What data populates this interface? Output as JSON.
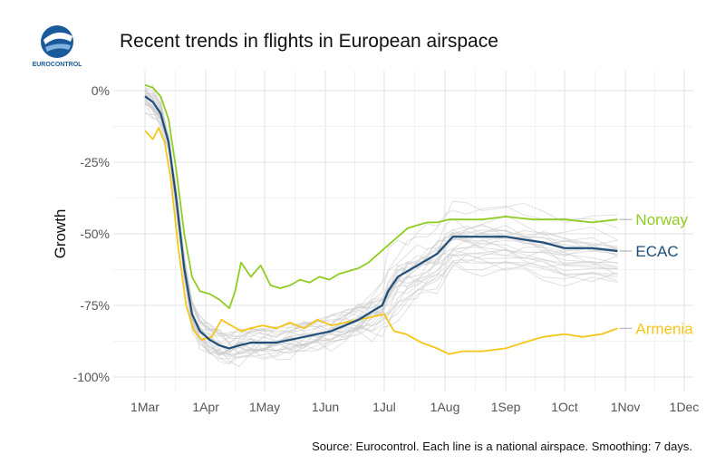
{
  "brand": {
    "logo_text": "EUROCONTROL"
  },
  "title": "Recent trends in flights in European airspace",
  "source": "Source: Eurocontrol. Each line is a national airspace. Smoothing: 7 days.",
  "colors": {
    "norway": "#8fcc21",
    "ecac": "#1f4e79",
    "armenia": "#f5c518",
    "background_lines": "#c8c8c8",
    "grid": "#e6e6e6"
  },
  "chart_data": {
    "type": "line",
    "title": "Recent trends in flights in European airspace",
    "ylabel": "Growth",
    "xlabel": "",
    "x_ticks": [
      "1Mar",
      "1Apr",
      "1May",
      "1Jun",
      "1Jul",
      "1Aug",
      "1Sep",
      "1Oct",
      "1Nov",
      "1Dec"
    ],
    "y_ticks": [
      "0%",
      "-25%",
      "-50%",
      "-75%",
      "-100%"
    ],
    "y_tick_values": [
      0,
      -25,
      -50,
      -75,
      -100
    ],
    "xlim": [
      "2020-03-01",
      "2020-12-01"
    ],
    "ylim": [
      -100,
      5
    ],
    "grid": true,
    "legend": "direct labels at line ends (right)",
    "series": [
      {
        "name": "Norway",
        "color": "#8fcc21",
        "x": [
          "2020-03-01",
          "2020-03-05",
          "2020-03-09",
          "2020-03-13",
          "2020-03-17",
          "2020-03-21",
          "2020-03-25",
          "2020-03-29",
          "2020-04-03",
          "2020-04-08",
          "2020-04-13",
          "2020-04-16",
          "2020-04-19",
          "2020-04-24",
          "2020-04-29",
          "2020-05-04",
          "2020-05-09",
          "2020-05-14",
          "2020-05-19",
          "2020-05-24",
          "2020-05-29",
          "2020-06-03",
          "2020-06-08",
          "2020-06-13",
          "2020-06-18",
          "2020-06-23",
          "2020-06-28",
          "2020-07-03",
          "2020-07-08",
          "2020-07-13",
          "2020-07-18",
          "2020-07-23",
          "2020-07-28",
          "2020-08-03",
          "2020-08-10",
          "2020-08-20",
          "2020-09-01",
          "2020-09-15",
          "2020-10-01",
          "2020-10-15",
          "2020-10-28"
        ],
        "y": [
          2,
          1,
          -2,
          -10,
          -28,
          -50,
          -65,
          -70,
          -71,
          -73,
          -76,
          -70,
          -60,
          -65,
          -61,
          -68,
          -69,
          -68,
          -66,
          -67,
          -65,
          -66,
          -64,
          -63,
          -62,
          -60,
          -57,
          -54,
          -51,
          -48,
          -47,
          -46,
          -46,
          -45,
          -45,
          -45,
          -44,
          -45,
          -45,
          -46,
          -45
        ]
      },
      {
        "name": "ECAC",
        "color": "#1f4e79",
        "x": [
          "2020-03-01",
          "2020-03-05",
          "2020-03-09",
          "2020-03-13",
          "2020-03-17",
          "2020-03-21",
          "2020-03-25",
          "2020-03-29",
          "2020-04-03",
          "2020-04-08",
          "2020-04-13",
          "2020-04-18",
          "2020-04-24",
          "2020-04-30",
          "2020-05-07",
          "2020-05-14",
          "2020-05-21",
          "2020-05-28",
          "2020-06-04",
          "2020-06-11",
          "2020-06-18",
          "2020-06-25",
          "2020-06-30",
          "2020-07-03",
          "2020-07-08",
          "2020-07-13",
          "2020-07-18",
          "2020-07-23",
          "2020-07-28",
          "2020-08-01",
          "2020-08-05",
          "2020-08-12",
          "2020-08-20",
          "2020-09-01",
          "2020-09-10",
          "2020-09-20",
          "2020-10-01",
          "2020-10-15",
          "2020-10-28"
        ],
        "y": [
          -2,
          -4,
          -8,
          -18,
          -38,
          -62,
          -78,
          -84,
          -87,
          -89,
          -90,
          -89,
          -88,
          -88,
          -88,
          -87,
          -86,
          -85,
          -84,
          -82,
          -80,
          -77,
          -75,
          -70,
          -65,
          -63,
          -61,
          -59,
          -57,
          -54,
          -51,
          -51,
          -51,
          -51,
          -52,
          -53,
          -55,
          -55,
          -56
        ]
      },
      {
        "name": "Armenia",
        "color": "#f5c518",
        "x": [
          "2020-03-01",
          "2020-03-05",
          "2020-03-08",
          "2020-03-11",
          "2020-03-14",
          "2020-03-18",
          "2020-03-22",
          "2020-03-26",
          "2020-03-30",
          "2020-04-04",
          "2020-04-09",
          "2020-04-14",
          "2020-04-19",
          "2020-04-24",
          "2020-04-30",
          "2020-05-07",
          "2020-05-14",
          "2020-05-21",
          "2020-05-28",
          "2020-06-04",
          "2020-06-11",
          "2020-06-18",
          "2020-06-25",
          "2020-07-01",
          "2020-07-06",
          "2020-07-12",
          "2020-07-20",
          "2020-07-28",
          "2020-08-03",
          "2020-08-10",
          "2020-08-20",
          "2020-09-01",
          "2020-09-10",
          "2020-09-20",
          "2020-10-01",
          "2020-10-10",
          "2020-10-20",
          "2020-10-28"
        ],
        "y": [
          -14,
          -17,
          -13,
          -18,
          -30,
          -55,
          -75,
          -84,
          -87,
          -86,
          -80,
          -82,
          -84,
          -83,
          -82,
          -83,
          -81,
          -83,
          -80,
          -82,
          -81,
          -80,
          -79,
          -78,
          -84,
          -85,
          -88,
          -90,
          -92,
          -91,
          -91,
          -90,
          -88,
          -86,
          -85,
          -86,
          -85,
          -83
        ]
      }
    ],
    "series_labels": [
      "Norway",
      "ECAC",
      "Armenia"
    ]
  }
}
